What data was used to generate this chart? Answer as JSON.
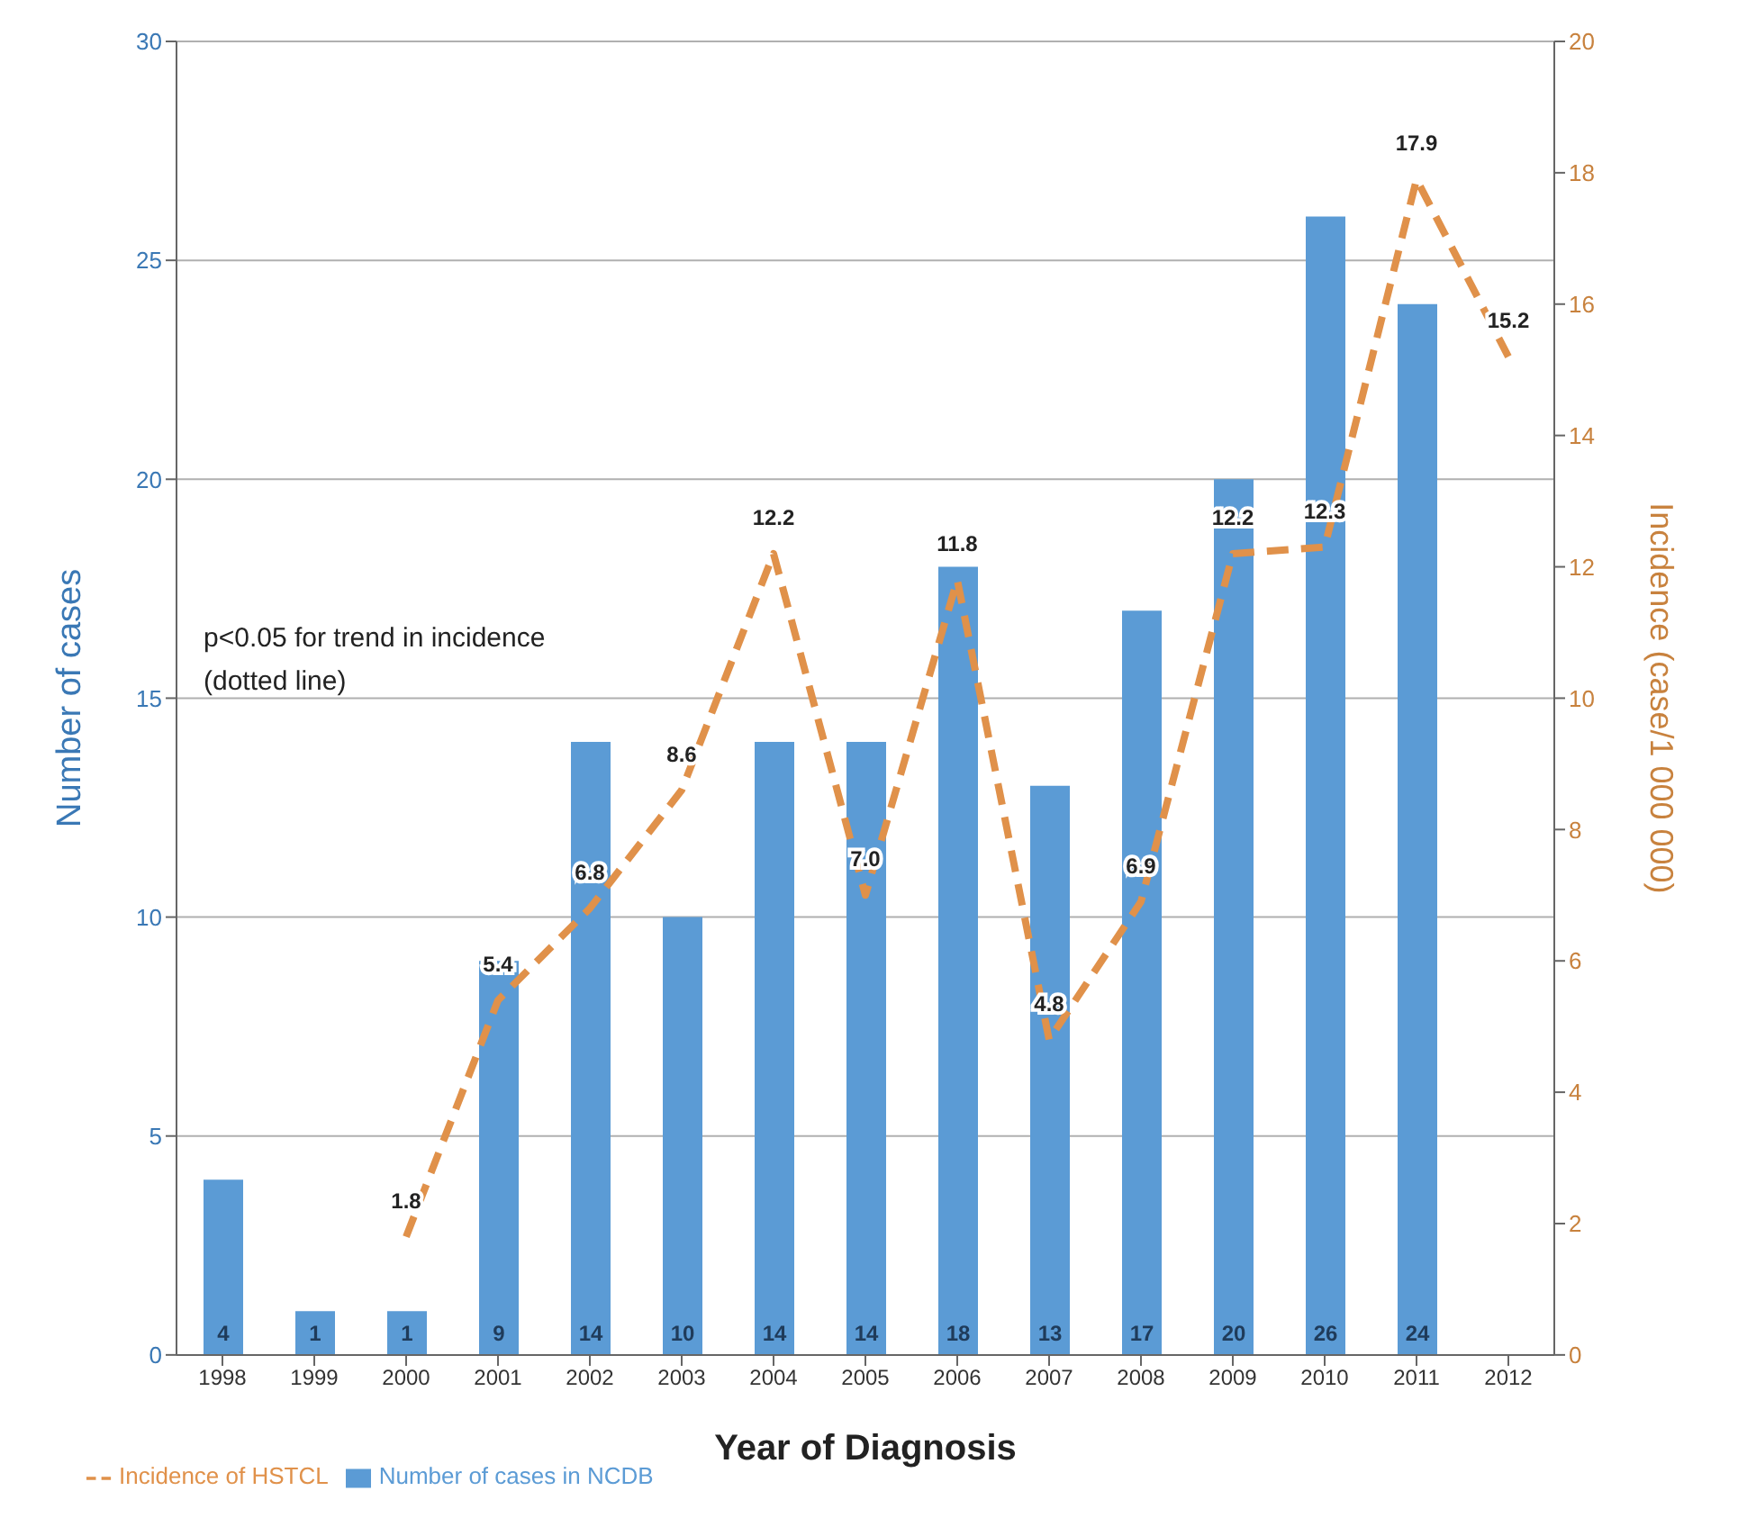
{
  "chart_data": {
    "type": "bar",
    "xlabel": "Year of Diagnosis",
    "ylabel": "Number of cases",
    "y2label": "Incidence (case/1 000 000)",
    "categories": [
      "1998",
      "1999",
      "2000",
      "2001",
      "2002",
      "2003",
      "2004",
      "2005",
      "2006",
      "2007",
      "2008",
      "2009",
      "2010",
      "2011",
      "2012"
    ],
    "series": [
      {
        "name": "Number of cases in NCDB",
        "color": "#5b9bd5",
        "values": [
          4,
          1,
          1,
          9,
          14,
          10,
          14,
          14,
          18,
          13,
          17,
          20,
          26,
          24,
          null
        ],
        "value_labels": [
          "4",
          "1",
          "1",
          "9",
          "14",
          "10",
          "14",
          "14",
          "18",
          "13",
          "17",
          "20",
          "26",
          "24",
          null
        ]
      },
      {
        "name": "Incidence of HSTCL",
        "type": "line",
        "axis": "y2",
        "color": "#e0914a",
        "line_style": "dashed",
        "marker": "none",
        "values": [
          null,
          null,
          1.8,
          5.4,
          6.8,
          8.6,
          12.2,
          7.0,
          11.8,
          4.8,
          6.9,
          12.2,
          12.3,
          17.9,
          15.2
        ],
        "value_labels": [
          null,
          null,
          "1.8",
          "5.4",
          "6.8",
          "8.6",
          "12.2",
          "7.0",
          "11.8",
          "4.8",
          "6.9",
          "12.2",
          "12.3",
          "17.9",
          "15.2"
        ]
      }
    ],
    "ylim": [
      0,
      30
    ],
    "yticks": [
      0,
      5,
      10,
      15,
      20,
      25,
      30
    ],
    "y2lim": [
      0,
      20
    ],
    "y2ticks": [
      0,
      2,
      4,
      6,
      8,
      10,
      12,
      14,
      16,
      18,
      20
    ],
    "grid": "y",
    "legend": "bottom left",
    "annotations": [
      "p<0.05 for trend in incidence\n(dotted line)"
    ]
  }
}
